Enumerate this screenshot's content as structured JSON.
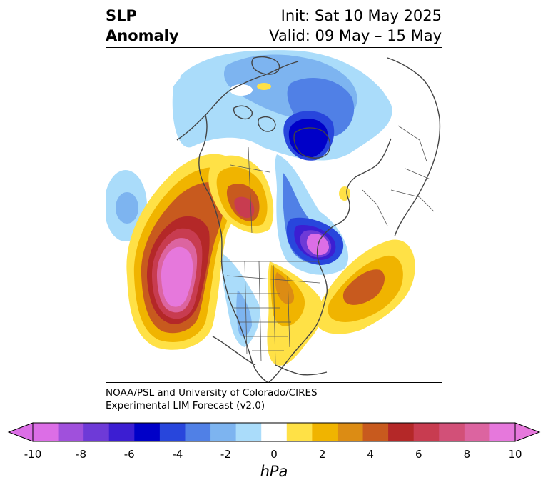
{
  "header": {
    "title_line1": "SLP",
    "title_line2": "Anomaly",
    "init_label": "Init: Sat 10 May 2025",
    "valid_label": "Valid: 09 May – 15 May"
  },
  "credit": {
    "line1": "NOAA/PSL and University of Colorado/CIRES",
    "line2": "Experimental LIM Forecast (v2.0)"
  },
  "colorbar": {
    "unit": "hPa",
    "tick_labels": [
      "-10",
      "-8",
      "-6",
      "-4",
      "-2",
      "0",
      "2",
      "4",
      "6",
      "8",
      "10"
    ],
    "levels": [
      -10,
      -9,
      -8,
      -7,
      -6,
      -5,
      -4,
      -3,
      -2,
      -1,
      1,
      2,
      3,
      4,
      5,
      6,
      7,
      8,
      9,
      10
    ],
    "colors": [
      "#dc6ee6",
      "#a050dc",
      "#6e3ad7",
      "#3c1ed2",
      "#0000c8",
      "#2846dc",
      "#5080e6",
      "#7db4f0",
      "#aadcfa",
      "#ffffff",
      "#ffe146",
      "#f0b400",
      "#dc8c14",
      "#c85a1e",
      "#b42828",
      "#c83c50",
      "#d25078",
      "#dc64a0",
      "#e678dc"
    ],
    "extend": "both"
  },
  "map": {
    "projection": "north-polar-stereographic",
    "region": "North America, North Atlantic, North Pacific, Arctic",
    "colors": {
      "coast": "#444444",
      "border": "#555555"
    }
  }
}
